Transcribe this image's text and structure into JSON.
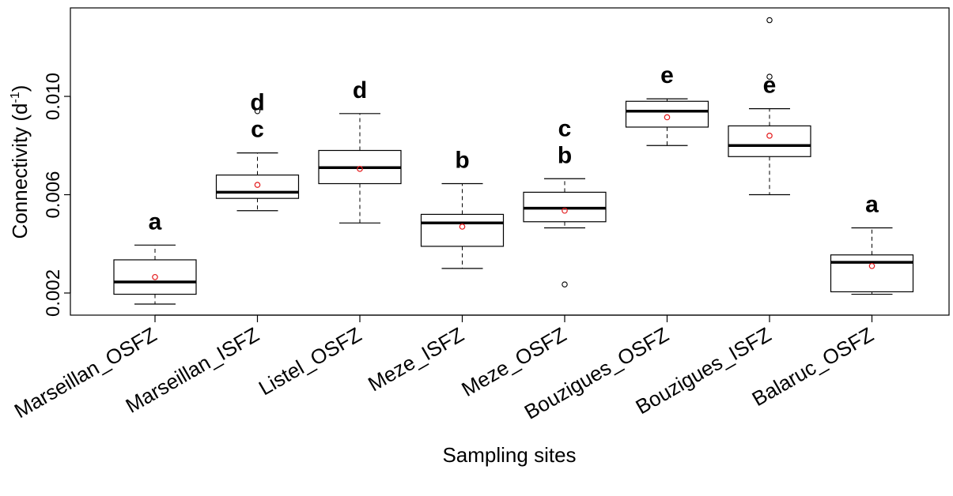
{
  "chart_data": {
    "type": "boxplot",
    "title": "",
    "xlabel": "Sampling sites",
    "ylabel_main": "Connectivity (d",
    "ylabel_sup": "-1",
    "ylabel_close": ")",
    "ylim": [
      0.0011,
      0.0136
    ],
    "yticks": [
      0.002,
      0.006,
      0.01
    ],
    "ytick_labels": [
      "0.002",
      "0.006",
      "0.010"
    ],
    "grid": false,
    "mean_marker_color": "#e41a1c",
    "categories": [
      "Marseillan_OSFZ",
      "Marseillan_ISFZ",
      "Listel_OSFZ",
      "Meze_ISFZ",
      "Meze_OSFZ",
      "Bouzigues_OSFZ",
      "Bouzigues_ISFZ",
      "Balaruc_OSFZ"
    ],
    "boxes": [
      {
        "whisker_low": 0.00155,
        "q1": 0.00195,
        "median": 0.00245,
        "q3": 0.00335,
        "whisker_high": 0.00395,
        "mean": 0.00265,
        "outliers": [],
        "letters": [
          "a"
        ]
      },
      {
        "whisker_low": 0.00535,
        "q1": 0.00585,
        "median": 0.0061,
        "q3": 0.0068,
        "whisker_high": 0.0077,
        "mean": 0.0064,
        "outliers": [
          0.0094
        ],
        "letters": [
          "d",
          "c"
        ]
      },
      {
        "whisker_low": 0.00485,
        "q1": 0.00645,
        "median": 0.0071,
        "q3": 0.0078,
        "whisker_high": 0.0093,
        "mean": 0.00705,
        "outliers": [],
        "letters": [
          "d"
        ]
      },
      {
        "whisker_low": 0.003,
        "q1": 0.0039,
        "median": 0.00485,
        "q3": 0.0052,
        "whisker_high": 0.00645,
        "mean": 0.0047,
        "outliers": [],
        "letters": [
          "b"
        ]
      },
      {
        "whisker_low": 0.00465,
        "q1": 0.0049,
        "median": 0.00545,
        "q3": 0.0061,
        "whisker_high": 0.00665,
        "mean": 0.00535,
        "outliers": [
          0.00235
        ],
        "letters": [
          "c",
          "b"
        ]
      },
      {
        "whisker_low": 0.008,
        "q1": 0.00875,
        "median": 0.0094,
        "q3": 0.0098,
        "whisker_high": 0.0099,
        "mean": 0.00915,
        "outliers": [],
        "letters": [
          "e"
        ]
      },
      {
        "whisker_low": 0.006,
        "q1": 0.00755,
        "median": 0.008,
        "q3": 0.0088,
        "whisker_high": 0.0095,
        "mean": 0.0084,
        "outliers": [
          0.0108,
          0.0131
        ],
        "letters": [
          "e"
        ]
      },
      {
        "whisker_low": 0.00195,
        "q1": 0.00205,
        "median": 0.00325,
        "q3": 0.00355,
        "whisker_high": 0.00465,
        "mean": 0.0031,
        "outliers": [],
        "letters": [
          "a"
        ]
      }
    ]
  }
}
